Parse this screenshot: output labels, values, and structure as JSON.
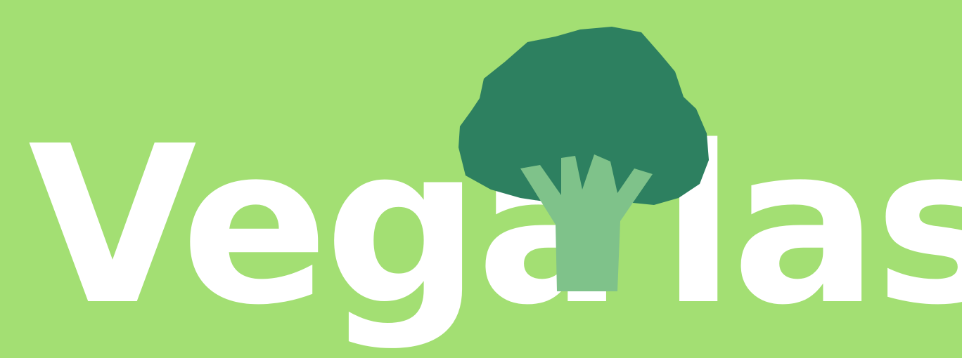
{
  "logo": {
    "text_left": "Vega",
    "text_right": "las",
    "icon": "broccoli-icon",
    "colors": {
      "background": "#a3df73",
      "text": "#ffffff",
      "crown": "#2d8060",
      "stem": "#7fc28a"
    }
  }
}
